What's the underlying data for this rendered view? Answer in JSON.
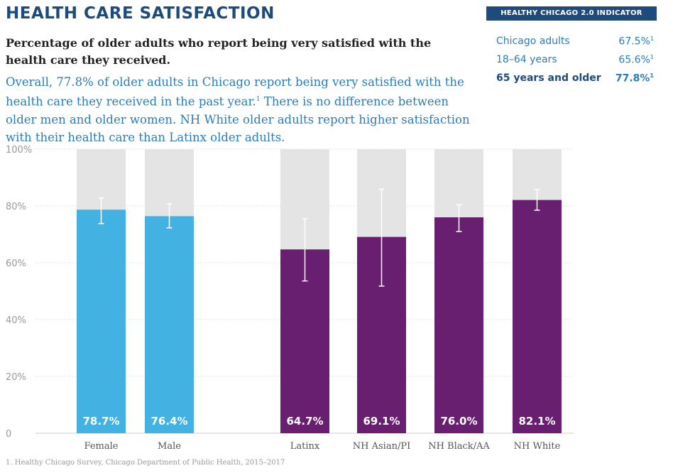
{
  "header": {
    "title": "HEALTH CARE SATISFACTION",
    "badge": "HEALTHY CHICAGO 2.0 INDICATOR",
    "subtitle": "Percentage of older adults who report being very satisfied with the health care they received.",
    "description_before_note": "Overall, 77.8% of older adults in Chicago report being very satisfied with the health care they received in the past year.",
    "description_note_marker": "1",
    "description_after_note": " There is no difference between older men and older women. NH White older adults report higher satisfaction with their health care than Latinx older adults."
  },
  "indicators": [
    {
      "label": "Chicago adults",
      "value": "67.5%",
      "note": "1",
      "bold": false
    },
    {
      "label": "18–64 years",
      "value": "65.6%",
      "note": "1",
      "bold": false
    },
    {
      "label": "65 years and older",
      "value": "77.8%",
      "note": "1",
      "bold": true
    }
  ],
  "chart_data": {
    "type": "bar",
    "title": "",
    "xlabel": "",
    "ylabel": "",
    "ylim": [
      0,
      100
    ],
    "y_ticks": [
      {
        "value": 0,
        "label": "0"
      },
      {
        "value": 20,
        "label": "20%"
      },
      {
        "value": 40,
        "label": "40%"
      },
      {
        "value": 60,
        "label": "60%"
      },
      {
        "value": 80,
        "label": "80%"
      },
      {
        "value": 100,
        "label": "100%"
      }
    ],
    "grid": true,
    "colors": {
      "sex": "#42b2e3",
      "race_ethnicity": "#681f6f",
      "background_bar": "#e4e4e4",
      "error_bar": "#ffffff"
    },
    "categories": [
      "Female",
      "Male",
      "Latinx",
      "NH Asian/PI",
      "NH Black/AA",
      "NH White"
    ],
    "groups": [
      "sex",
      "sex",
      "race_ethnicity",
      "race_ethnicity",
      "race_ethnicity",
      "race_ethnicity"
    ],
    "values": [
      78.7,
      76.4,
      64.7,
      69.1,
      76.0,
      82.1
    ],
    "value_labels": [
      "78.7%",
      "76.4%",
      "64.7%",
      "69.1%",
      "76.0%",
      "82.1%"
    ],
    "ci_lower": [
      73.8,
      72.3,
      53.6,
      51.8,
      71.0,
      78.5
    ],
    "ci_upper": [
      82.8,
      80.8,
      75.5,
      85.9,
      80.4,
      85.8
    ]
  },
  "footnote": "1. Healthy Chicago Survey, Chicago Department of Public Health, 2015–2017"
}
